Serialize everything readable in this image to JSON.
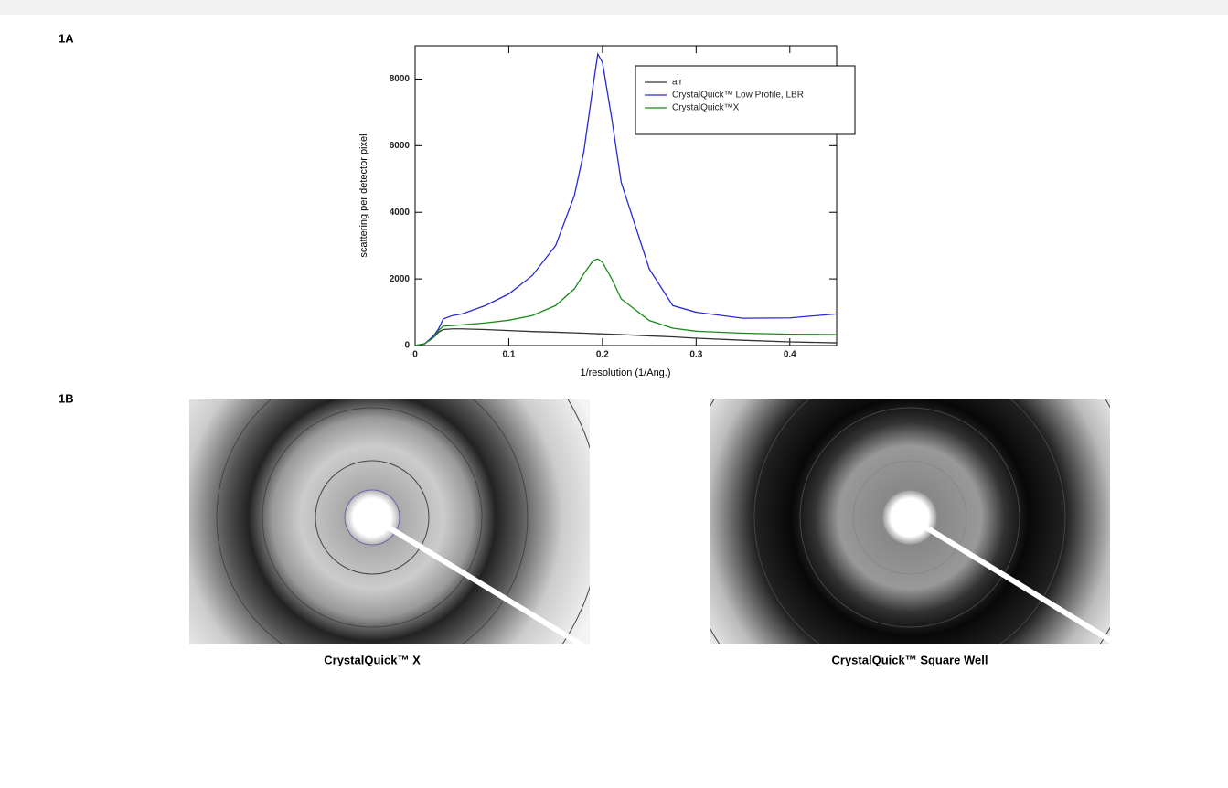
{
  "figure_labels": [
    "1A",
    "1B"
  ],
  "captions": [
    "CrystalQuick™ X",
    "CrystalQuick™ Square Well"
  ],
  "chart_data": {
    "type": "line",
    "x_label": "1/resolution (1/Ang.)",
    "y_label": "scattering per detector pixel",
    "x": [
      0,
      0.01,
      0.02,
      0.025,
      0.03,
      0.04,
      0.05,
      0.075,
      0.1,
      0.125,
      0.15,
      0.17,
      0.18,
      0.19,
      0.195,
      0.2,
      0.21,
      0.22,
      0.25,
      0.275,
      0.3,
      0.35,
      0.4,
      0.45
    ],
    "xlim": [
      0,
      0.45
    ],
    "xticks": [
      0,
      0.1,
      0.2,
      0.3,
      0.4
    ],
    "ylim": [
      0,
      9000
    ],
    "yticks": [
      0,
      2000,
      4000,
      6000,
      8000
    ],
    "legend": "top-right",
    "series": [
      {
        "name": "air",
        "color": "#333333",
        "values": [
          0,
          50,
          250,
          400,
          480,
          500,
          500,
          480,
          450,
          420,
          400,
          380,
          370,
          360,
          355,
          350,
          340,
          330,
          290,
          260,
          220,
          160,
          110,
          80
        ]
      },
      {
        "name": "CrystalQuick™ Low Profile, LBR",
        "color": "#2a2ad0",
        "values": [
          0,
          50,
          300,
          500,
          800,
          900,
          950,
          1200,
          1550,
          2100,
          3000,
          4500,
          5800,
          7800,
          8750,
          8500,
          6800,
          4900,
          2300,
          1200,
          1000,
          820,
          830,
          950
        ]
      },
      {
        "name": "CrystalQuick™X",
        "color": "#1a8a1a",
        "values": [
          0,
          50,
          250,
          450,
          580,
          600,
          620,
          680,
          760,
          900,
          1200,
          1700,
          2150,
          2550,
          2600,
          2500,
          2000,
          1400,
          750,
          520,
          430,
          370,
          340,
          330
        ]
      }
    ]
  }
}
